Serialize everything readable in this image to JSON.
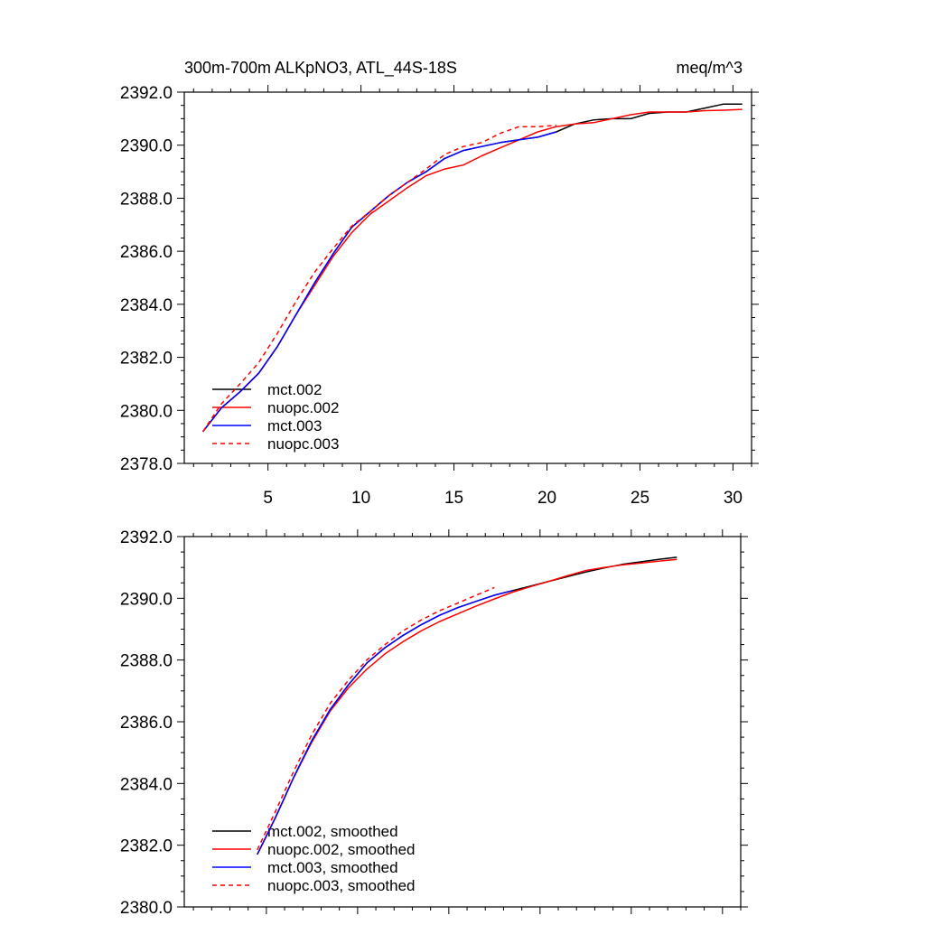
{
  "chart_data": [
    {
      "type": "line",
      "title": "300m-700m ALKpNO3, ATL_44S-18S",
      "units": "meq/m^3",
      "xlim": [
        0.5,
        31.0
      ],
      "ylim": [
        2378.0,
        2392.0
      ],
      "yticks": [
        "2378.0",
        "2380.0",
        "2382.0",
        "2384.0",
        "2386.0",
        "2388.0",
        "2390.0",
        "2392.0"
      ],
      "xticks": [
        "5",
        "10",
        "15",
        "20",
        "25",
        "30"
      ],
      "grid": false,
      "legend_position": "bottom-left",
      "series": [
        {
          "name": "mct.002",
          "color": "#000000",
          "dash": "solid",
          "x": [
            1.5,
            2.5,
            3.5,
            4.5,
            5.5,
            6.5,
            7.5,
            8.5,
            9.5,
            10.5,
            11.5,
            12.5,
            13.5,
            14.5,
            15.5,
            16.5,
            17.5,
            18.5,
            19.5,
            20.5,
            21.5,
            22.5,
            23.5,
            24.5,
            25.5,
            26.5,
            27.5,
            28.5,
            29.5,
            30.5
          ],
          "y": [
            2379.2,
            2380.1,
            2380.7,
            2381.4,
            2382.4,
            2383.6,
            2384.8,
            2385.9,
            2386.9,
            2387.5,
            2388.1,
            2388.6,
            2389.0,
            2389.5,
            2389.8,
            2389.95,
            2390.1,
            2390.2,
            2390.3,
            2390.5,
            2390.8,
            2390.95,
            2391.0,
            2391.0,
            2391.2,
            2391.25,
            2391.25,
            2391.4,
            2391.55,
            2391.55
          ]
        },
        {
          "name": "nuopc.002",
          "color": "#ff0000",
          "dash": "solid",
          "x": [
            1.5,
            2.5,
            3.5,
            4.5,
            5.5,
            6.5,
            7.5,
            8.5,
            9.5,
            10.5,
            11.5,
            12.5,
            13.5,
            14.5,
            15.5,
            16.5,
            17.5,
            18.5,
            19.5,
            20.5,
            21.5,
            22.5,
            23.5,
            24.5,
            25.5,
            26.5,
            27.5,
            28.5,
            29.5,
            30.5
          ],
          "y": [
            2379.2,
            2380.1,
            2380.7,
            2381.4,
            2382.4,
            2383.6,
            2384.7,
            2385.8,
            2386.7,
            2387.4,
            2387.9,
            2388.4,
            2388.85,
            2389.1,
            2389.25,
            2389.6,
            2389.9,
            2390.2,
            2390.5,
            2390.7,
            2390.8,
            2390.85,
            2391.0,
            2391.15,
            2391.25,
            2391.25,
            2391.25,
            2391.3,
            2391.32,
            2391.35
          ]
        },
        {
          "name": "mct.003",
          "color": "#0000ff",
          "dash": "solid",
          "x": [
            1.5,
            2.5,
            3.5,
            4.5,
            5.5,
            6.5,
            7.5,
            8.5,
            9.5,
            10.5,
            11.5,
            12.5,
            13.5,
            14.5,
            15.5,
            16.5,
            17.5,
            18.5,
            19.5,
            20.5
          ],
          "y": [
            2379.2,
            2380.1,
            2380.7,
            2381.4,
            2382.4,
            2383.6,
            2384.8,
            2385.9,
            2386.9,
            2387.5,
            2388.1,
            2388.6,
            2389.0,
            2389.5,
            2389.8,
            2389.95,
            2390.1,
            2390.2,
            2390.3,
            2390.5
          ]
        },
        {
          "name": "nuopc.003",
          "color": "#ff0000",
          "dash": "dashed",
          "x": [
            1.5,
            2.5,
            3.5,
            4.5,
            5.5,
            6.5,
            7.5,
            8.5,
            9.5,
            10.5,
            11.5,
            12.5,
            13.5,
            14.5,
            15.5,
            16.5,
            17.5,
            18.5,
            19.5,
            20.5
          ],
          "y": [
            2379.2,
            2380.25,
            2381.0,
            2381.8,
            2382.9,
            2384.1,
            2385.2,
            2386.1,
            2386.95,
            2387.5,
            2388.1,
            2388.6,
            2389.1,
            2389.65,
            2389.95,
            2390.1,
            2390.45,
            2390.7,
            2390.7,
            2390.75
          ]
        }
      ]
    },
    {
      "type": "line",
      "xlim": [
        0.5,
        31.0
      ],
      "ylim": [
        2380.0,
        2392.0
      ],
      "yticks": [
        "2380.0",
        "2382.0",
        "2384.0",
        "2386.0",
        "2388.0",
        "2390.0",
        "2392.0"
      ],
      "grid": false,
      "legend_position": "bottom-left",
      "series": [
        {
          "name": "mct.002, smoothed",
          "color": "#000000",
          "dash": "solid",
          "x": [
            4.5,
            5.5,
            6.5,
            7.5,
            8.5,
            9.5,
            10.5,
            11.5,
            12.5,
            13.5,
            14.5,
            15.5,
            16.5,
            17.5,
            18.5,
            19.5,
            20.5,
            21.5,
            22.5,
            23.5,
            24.5,
            25.5,
            26.5,
            27.5
          ],
          "y": [
            2381.7,
            2382.9,
            2384.2,
            2385.4,
            2386.4,
            2387.2,
            2387.9,
            2388.4,
            2388.8,
            2389.15,
            2389.45,
            2389.7,
            2389.9,
            2390.1,
            2390.25,
            2390.4,
            2390.55,
            2390.7,
            2390.85,
            2390.98,
            2391.1,
            2391.18,
            2391.26,
            2391.33
          ]
        },
        {
          "name": "nuopc.002, smoothed",
          "color": "#ff0000",
          "dash": "solid",
          "x": [
            4.5,
            5.5,
            6.5,
            7.5,
            8.5,
            9.5,
            10.5,
            11.5,
            12.5,
            13.5,
            14.5,
            15.5,
            16.5,
            17.5,
            18.5,
            19.5,
            20.5,
            21.5,
            22.5,
            23.5,
            24.5,
            25.5,
            26.5,
            27.5
          ],
          "y": [
            2381.7,
            2382.9,
            2384.2,
            2385.35,
            2386.35,
            2387.1,
            2387.7,
            2388.2,
            2388.6,
            2388.95,
            2389.25,
            2389.5,
            2389.75,
            2389.98,
            2390.2,
            2390.38,
            2390.55,
            2390.73,
            2390.9,
            2391.0,
            2391.08,
            2391.14,
            2391.2,
            2391.26
          ]
        },
        {
          "name": "mct.003, smoothed",
          "color": "#0000ff",
          "dash": "solid",
          "x": [
            4.5,
            5.5,
            6.5,
            7.5,
            8.5,
            9.5,
            10.5,
            11.5,
            12.5,
            13.5,
            14.5,
            15.5,
            16.5,
            17.5,
            18.5
          ],
          "y": [
            2381.7,
            2382.9,
            2384.2,
            2385.4,
            2386.4,
            2387.2,
            2387.9,
            2388.4,
            2388.8,
            2389.15,
            2389.45,
            2389.7,
            2389.9,
            2390.1,
            2390.25
          ]
        },
        {
          "name": "nuopc.003, smoothed",
          "color": "#ff0000",
          "dash": "dashed",
          "x": [
            4.5,
            5.5,
            6.5,
            7.5,
            8.5,
            9.5,
            10.5,
            11.5,
            12.5,
            13.5,
            14.5,
            15.5,
            16.5,
            17.5
          ],
          "y": [
            2381.85,
            2383.1,
            2384.4,
            2385.6,
            2386.6,
            2387.35,
            2388.0,
            2388.5,
            2388.95,
            2389.3,
            2389.6,
            2389.85,
            2390.1,
            2390.35
          ]
        }
      ]
    }
  ]
}
